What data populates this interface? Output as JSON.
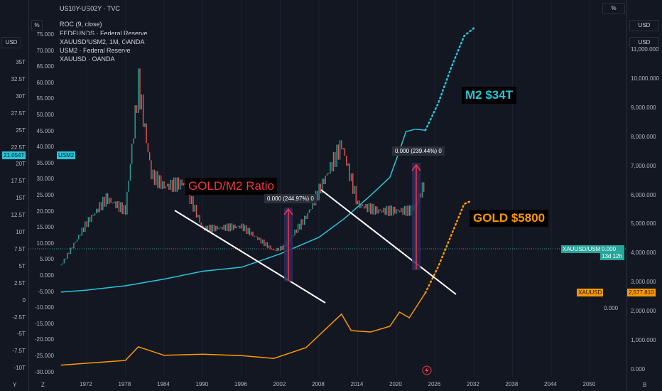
{
  "header": {
    "symbol_top": "US10Y-US02Y · TVC",
    "roc_label": "ROC (9, close)",
    "fed_label": "FEDFUNDS · Federal Reserve",
    "main_symbol": "XAUUSD/USM2, 1M, OANDA",
    "usm2_label": "USM2 · Federal Reserve",
    "xauusd_label": "XAUUSD · OANDA"
  },
  "controls": {
    "pct_top_left": "%",
    "pct_top_right": "%",
    "usd_left": "USD",
    "usd_right_top": "USD",
    "usd_right_second": "USD",
    "bottom_y": "Y",
    "bottom_z": "Z",
    "bottom_b": "B"
  },
  "labels": {
    "gold_m2_ratio": "GOLD/M2 Ratio",
    "m2_target": "M2 $34T",
    "gold_target": "GOLD $5800",
    "measure1": "0.000 (244.97%) 0",
    "measure2": "0.000 (239.44%) 0",
    "badge_m2_value": "21.054T",
    "badge_m2_name": "USM2",
    "badge_ratio_name": "XAUUSD/USM2",
    "badge_ratio_value": "0.000",
    "badge_ratio_time": "13d 12h",
    "badge_gold_name": "XAUUSD",
    "badge_gold_value": "2,577.810",
    "ratio_axis_value": "0.000"
  },
  "colors": {
    "background": "#131722",
    "m2_line": "#26c6da",
    "gold_line": "#ff9800",
    "ratio_up": "#26a69a",
    "ratio_down": "#ef5350",
    "trendline": "#ffffff",
    "ratio_label": "#f23645",
    "target_label_bg": "#000000",
    "measure_fill": "#2a2e5c"
  },
  "chart_data": {
    "type": "line",
    "title": "XAUUSD/USM2, 1M, OANDA",
    "x_ticks": [
      "1972",
      "1978",
      "1984",
      "1990",
      "1996",
      "2002",
      "2008",
      "2014",
      "2020",
      "2026",
      "2032",
      "2038",
      "2044",
      "2050"
    ],
    "left_axis_m2_ticks": [
      "35T",
      "32.5T",
      "30T",
      "27.5T",
      "25T",
      "22.5T",
      "20T",
      "17.5T",
      "15T",
      "12.5T",
      "10T",
      "7.5T",
      "5T",
      "2.5T",
      "0",
      "-2.5T",
      "-5T",
      "-7.5T",
      "-10T"
    ],
    "left_axis_pct_ticks": [
      "75.000",
      "70.000",
      "65.000",
      "60.000",
      "55.000",
      "50.000",
      "45.000",
      "40.000",
      "35.000",
      "30.000",
      "25.000",
      "20.000",
      "15.000",
      "10.000",
      "5.000",
      "0.000",
      "-5.000",
      "-10.000",
      "-15.000",
      "-20.000",
      "-25.000",
      "-30.000"
    ],
    "right_axis_gold_ticks": [
      "11,000.000",
      "10,000.000",
      "9,000.000",
      "8,000.000",
      "7,000.000",
      "6,000.000",
      "5,000.000",
      "4,000.000",
      "3,000.000",
      "2,000.000",
      "1,000.000",
      "0.000"
    ],
    "series": [
      {
        "name": "USM2",
        "color": "#26c6da",
        "x": [
          1968,
          1972,
          1978,
          1984,
          1990,
          1996,
          2002,
          2008,
          2012,
          2016,
          2019,
          2020.5,
          2021.5,
          2023,
          2024.5
        ],
        "y": [
          0.55,
          0.8,
          1.35,
          2.2,
          3.2,
          3.7,
          5.4,
          7.5,
          9.9,
          12.8,
          15.1,
          18.5,
          20.9,
          21.2,
          21.05
        ]
      },
      {
        "name": "USM2 projection",
        "color": "#26c6da",
        "x": [
          2024.5,
          2026.5,
          2028.5,
          2030.5,
          2032
        ],
        "y": [
          21.05,
          24.5,
          29,
          33,
          34
        ]
      },
      {
        "name": "XAUUSD",
        "color": "#ff9800",
        "x": [
          1968,
          1978,
          1980,
          1984,
          1990,
          1996,
          2001,
          2006,
          2011.5,
          2013,
          2016,
          2019,
          2020.5,
          2022,
          2024.5
        ],
        "y": [
          35,
          200,
          680,
          380,
          420,
          370,
          270,
          650,
          1830,
          1250,
          1200,
          1400,
          1900,
          1700,
          2578
        ]
      },
      {
        "name": "XAUUSD projection",
        "color": "#ff9800",
        "x": [
          2024.5,
          2026.5,
          2028.5,
          2030.5,
          2031.5
        ],
        "y": [
          2578,
          3500,
          4600,
          5700,
          5800
        ]
      },
      {
        "name": "XAUUSD/USM2",
        "color": "#26a69a",
        "x": [
          1968,
          1972,
          1975,
          1978,
          1980,
          1982,
          1984,
          1987,
          1990,
          1996,
          2001,
          2002.5,
          2006,
          2011.5,
          2014,
          2017,
          2020,
          2022,
          2023,
          2024.5
        ],
        "y": [
          10,
          45,
          65,
          55,
          160,
          85,
          75,
          78,
          40,
          42,
          22,
          25,
          50,
          110,
          60,
          55,
          55,
          55,
          60,
          80
        ]
      }
    ]
  }
}
